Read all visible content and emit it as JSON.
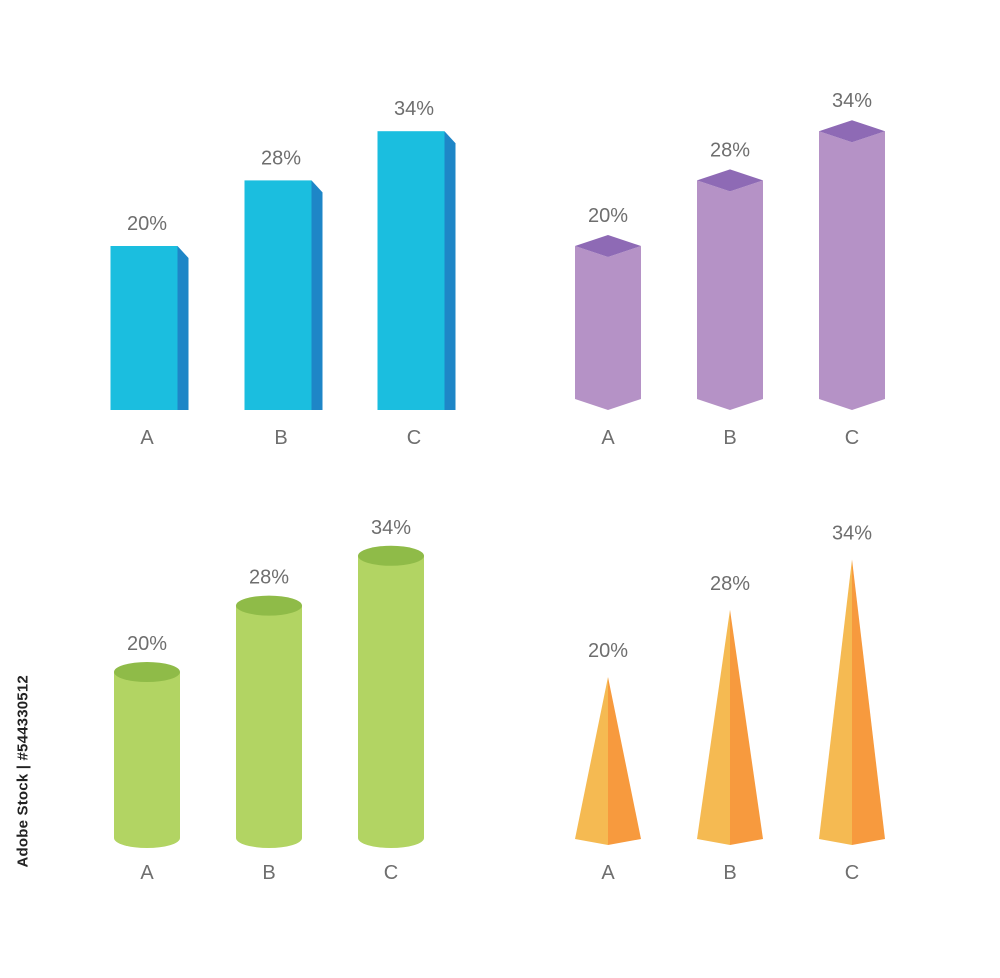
{
  "chart_data": [
    {
      "type": "bar",
      "style": "3d-box",
      "categories": [
        "A",
        "B",
        "C"
      ],
      "values": [
        20,
        28,
        34
      ],
      "data_labels": [
        "20%",
        "28%",
        "34%"
      ],
      "colors": {
        "front": "#1BBEDF",
        "side": "#1E86C7"
      }
    },
    {
      "type": "bar",
      "style": "3d-hexagonal-prism",
      "categories": [
        "A",
        "B",
        "C"
      ],
      "values": [
        20,
        28,
        34
      ],
      "data_labels": [
        "20%",
        "28%",
        "34%"
      ],
      "colors": {
        "front": "#B592C6",
        "top": "#8E6AB5"
      }
    },
    {
      "type": "bar",
      "style": "3d-cylinder",
      "categories": [
        "A",
        "B",
        "C"
      ],
      "values": [
        20,
        28,
        34
      ],
      "data_labels": [
        "20%",
        "28%",
        "34%"
      ],
      "colors": {
        "front": "#B2D463",
        "top": "#8FBB48"
      }
    },
    {
      "type": "bar",
      "style": "3d-pyramid",
      "categories": [
        "A",
        "B",
        "C"
      ],
      "values": [
        20,
        28,
        34
      ],
      "data_labels": [
        "20%",
        "28%",
        "34%"
      ],
      "colors": {
        "left": "#F5BA52",
        "right": "#F79A3E"
      }
    }
  ],
  "label_color": "#6E6E6E",
  "watermark": {
    "stock_id": "Adobe Stock | #544330512"
  }
}
